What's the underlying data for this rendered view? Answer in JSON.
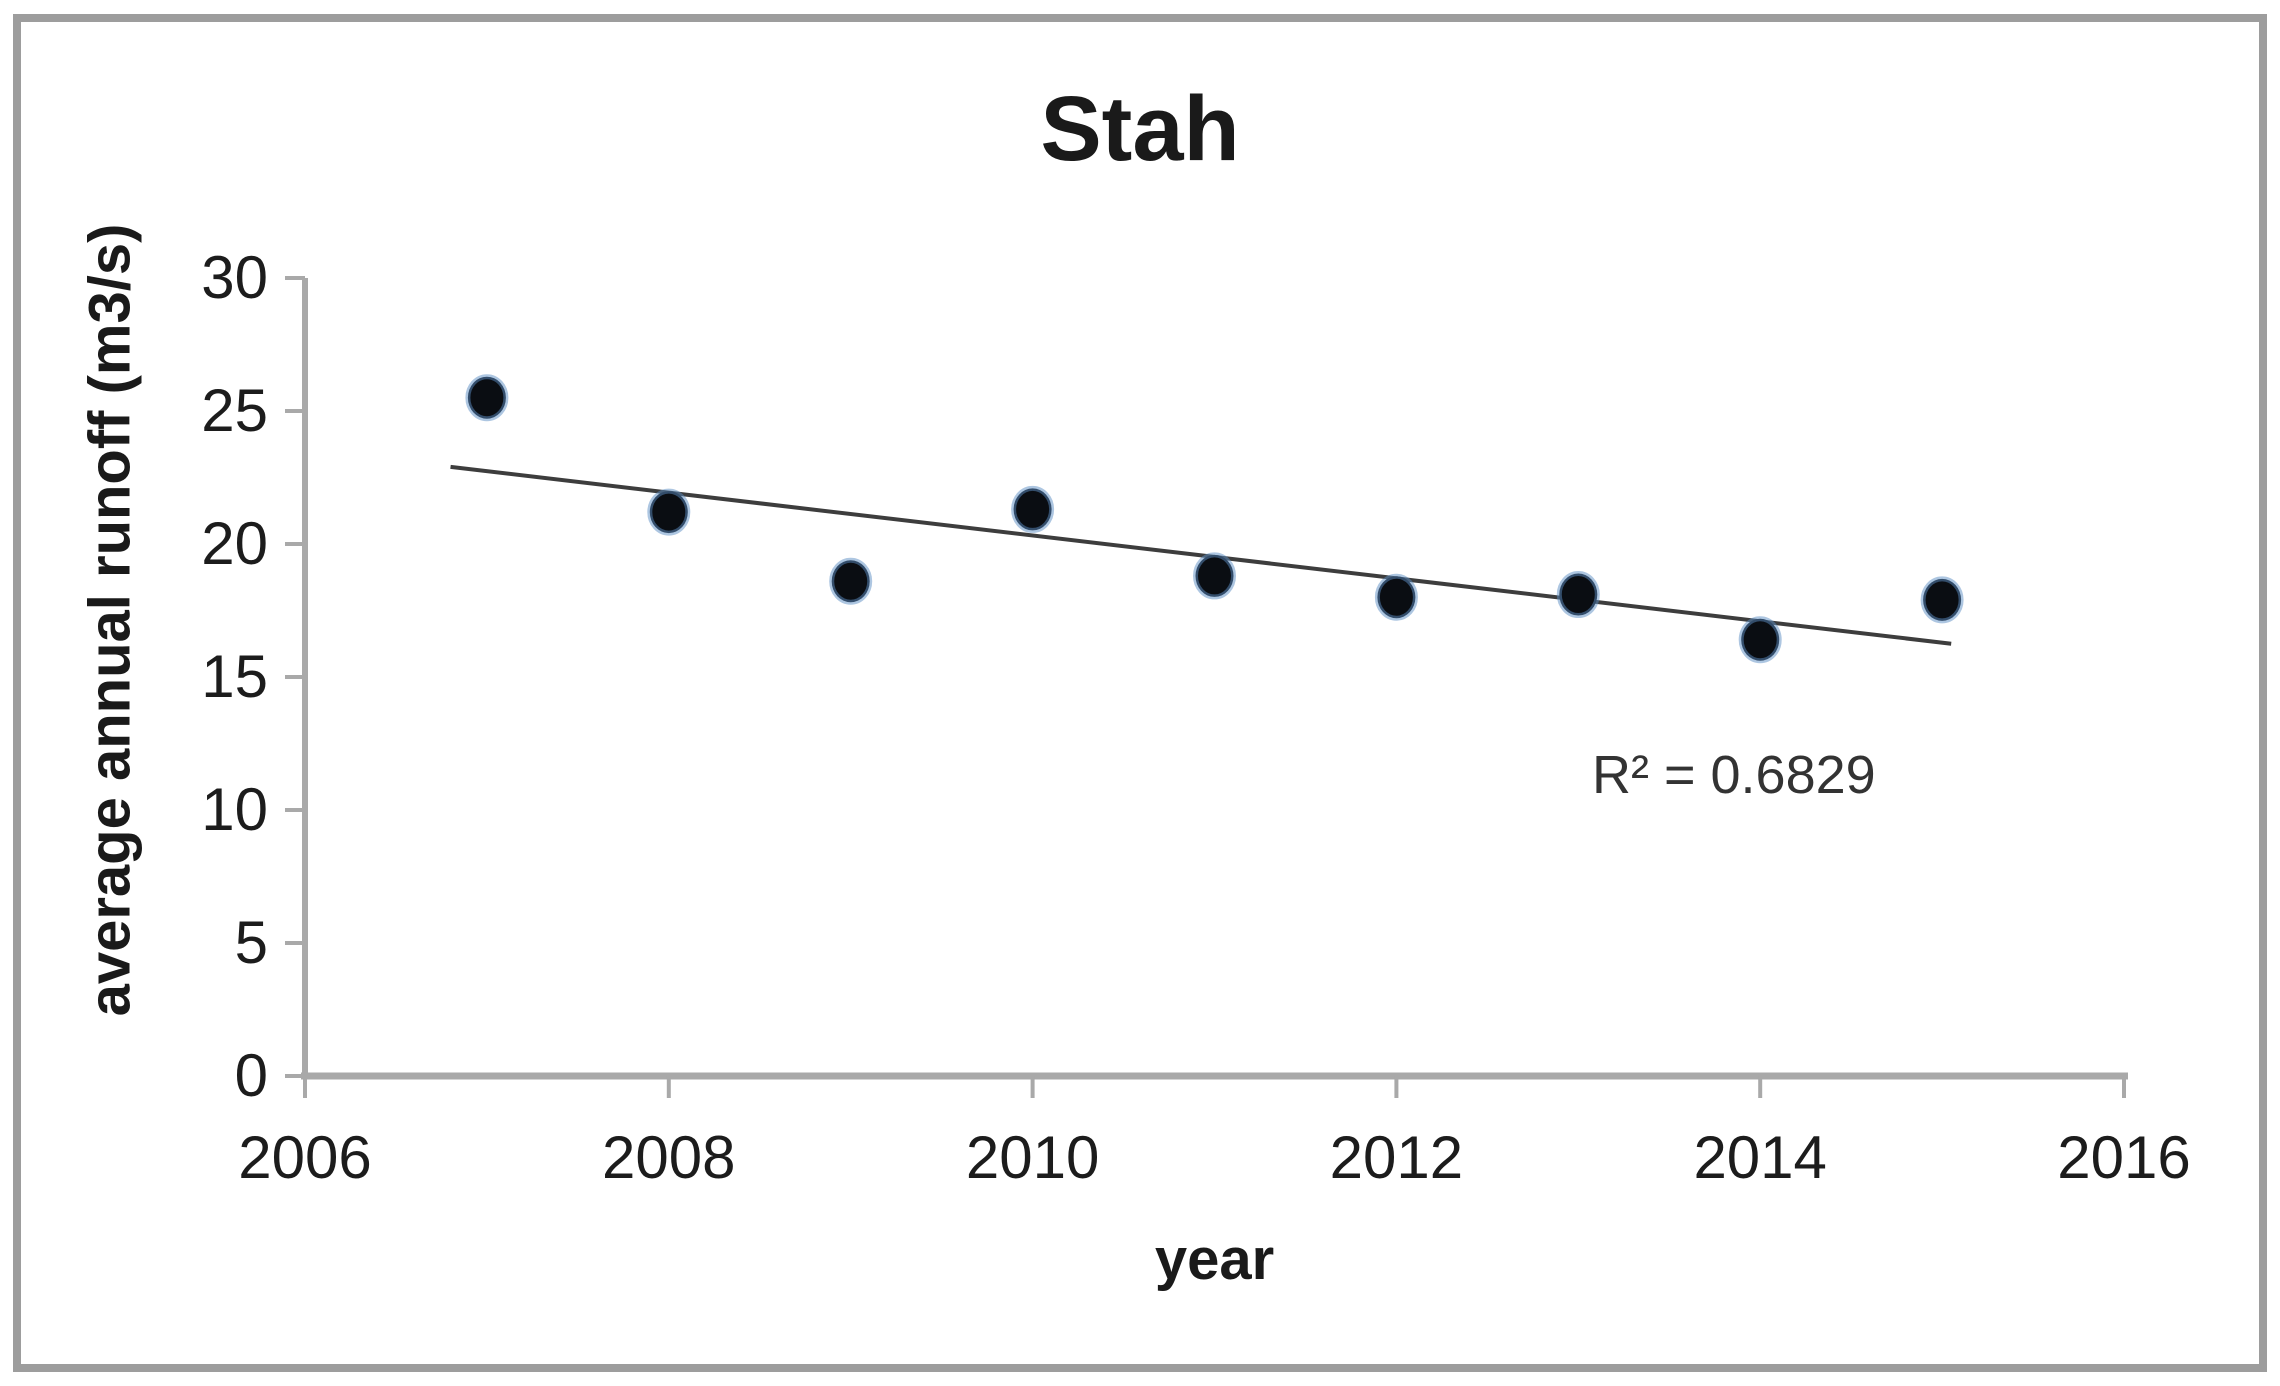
{
  "chart_data": {
    "type": "scatter",
    "title": "Stah",
    "xlabel": "year",
    "ylabel": "average annual runoff (m3/s)",
    "xlim": [
      2006,
      2016
    ],
    "ylim": [
      0,
      30
    ],
    "x_ticks": [
      2006,
      2008,
      2010,
      2012,
      2014,
      2016
    ],
    "y_ticks": [
      0,
      5,
      10,
      15,
      20,
      25,
      30
    ],
    "grid": false,
    "legend": false,
    "series": [
      {
        "name": "average annual runoff",
        "points": [
          {
            "x": 2007,
            "y": 25.5
          },
          {
            "x": 2008,
            "y": 21.2
          },
          {
            "x": 2009,
            "y": 18.6
          },
          {
            "x": 2010,
            "y": 21.3
          },
          {
            "x": 2011,
            "y": 18.8
          },
          {
            "x": 2012,
            "y": 18.0
          },
          {
            "x": 2013,
            "y": 18.1
          },
          {
            "x": 2014,
            "y": 16.4
          },
          {
            "x": 2015,
            "y": 17.9
          }
        ]
      }
    ],
    "trendline": {
      "type": "linear",
      "x1": 2006.8,
      "y1": 22.9,
      "x2": 2015.05,
      "y2": 16.25,
      "r_squared": 0.6829,
      "label": "R² = 0.6829"
    },
    "colors": {
      "marker_fill": "#0a0d12",
      "marker_halo": "#5b8ec4",
      "trendline": "#3d3d3d",
      "axis": "#a9a9a9",
      "text": "#1c1c1c",
      "frame": "#9d9d9d",
      "background": "#ffffff"
    }
  }
}
